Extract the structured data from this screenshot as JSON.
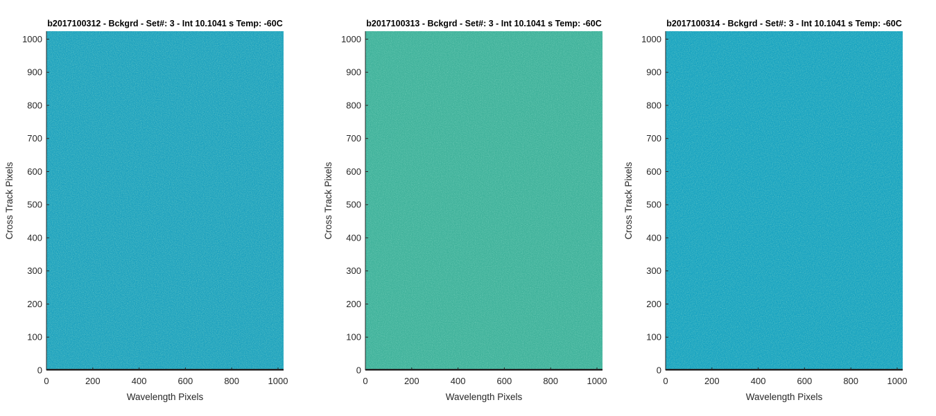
{
  "chart_data": [
    {
      "type": "heatmap",
      "title": "b2017100312 - Bckgrd - Set#: 3 - Int 10.1041 s Temp: -60C",
      "xlabel": "Wavelength Pixels",
      "ylabel": "Cross Track Pixels",
      "xlim": [
        0,
        1024
      ],
      "ylim": [
        0,
        1024
      ],
      "xticks": [
        0,
        200,
        400,
        600,
        800,
        1000
      ],
      "yticks": [
        0,
        100,
        200,
        300,
        400,
        500,
        600,
        700,
        800,
        900,
        1000
      ],
      "grid": false,
      "colors": {
        "base": "#1fa2bf",
        "noise_a": "#2aa7b3",
        "noise_b": "#4fb59e",
        "baseline_row": "#222222"
      }
    },
    {
      "type": "heatmap",
      "title": "b2017100313 - Bckgrd - Set#: 3 - Int 10.1041 s Temp: -60C",
      "xlabel": "Wavelength Pixels",
      "ylabel": "Cross Track Pixels",
      "xlim": [
        0,
        1024
      ],
      "ylim": [
        0,
        1024
      ],
      "xticks": [
        0,
        200,
        400,
        600,
        800,
        1000
      ],
      "yticks": [
        0,
        100,
        200,
        300,
        400,
        500,
        600,
        700,
        800,
        900,
        1000
      ],
      "grid": false,
      "colors": {
        "base": "#40b29b",
        "noise_a": "#5ab98f",
        "noise_b": "#2fa7ab",
        "baseline_row": "#222222"
      }
    },
    {
      "type": "heatmap",
      "title": "b2017100314 - Bckgrd - Set#: 3 - Int 10.1041 s Temp: -60C",
      "xlabel": "Wavelength Pixels",
      "ylabel": "Cross Track Pixels",
      "xlim": [
        0,
        1024
      ],
      "ylim": [
        0,
        1024
      ],
      "xticks": [
        0,
        200,
        400,
        600,
        800,
        1000
      ],
      "yticks": [
        0,
        100,
        200,
        300,
        400,
        500,
        600,
        700,
        800,
        900,
        1000
      ],
      "grid": false,
      "colors": {
        "base": "#19a3c1",
        "noise_a": "#23a6b8",
        "noise_b": "#38ada8",
        "baseline_row": "#222222"
      }
    }
  ]
}
